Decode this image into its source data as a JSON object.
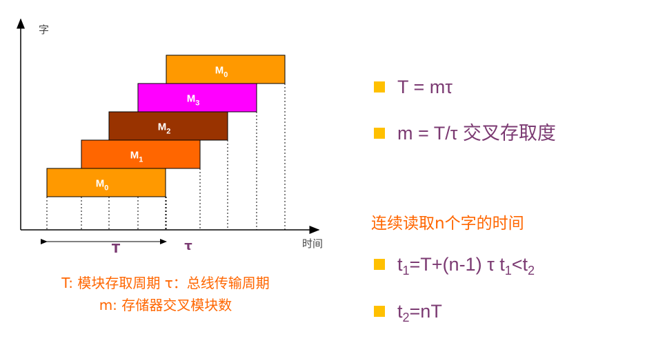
{
  "axes": {
    "y_label": "字",
    "x_label": "时间"
  },
  "modules": [
    {
      "name": "M",
      "sub": "0",
      "color": "#ff9900"
    },
    {
      "name": "M",
      "sub": "1",
      "color": "#ff6600"
    },
    {
      "name": "M",
      "sub": "2",
      "color": "#993300"
    },
    {
      "name": "M",
      "sub": "3",
      "color": "#ff00ff"
    },
    {
      "name": "M",
      "sub": "0",
      "color": "#ff9900"
    }
  ],
  "intervals": {
    "T": "T",
    "tau": "τ"
  },
  "caption": [
    "T:  模块存取周期 τ：总线传输周期",
    "m: 存储器交叉模块数"
  ],
  "bullets_top": [
    [
      {
        "text": "T  = mτ"
      }
    ],
    [
      {
        "text": "m = T/τ  交叉存取度"
      }
    ]
  ],
  "heading": "连续读取n个字的时间",
  "bullets_bottom": [
    [
      {
        "text": "t"
      },
      {
        "sub": "1"
      },
      {
        "text": "=T+(n-1) τ      t"
      },
      {
        "sub": "1"
      },
      {
        "text": "<t"
      },
      {
        "sub": "2"
      }
    ],
    [
      {
        "text": "t"
      },
      {
        "sub": "2"
      },
      {
        "text": "=nT"
      }
    ]
  ]
}
